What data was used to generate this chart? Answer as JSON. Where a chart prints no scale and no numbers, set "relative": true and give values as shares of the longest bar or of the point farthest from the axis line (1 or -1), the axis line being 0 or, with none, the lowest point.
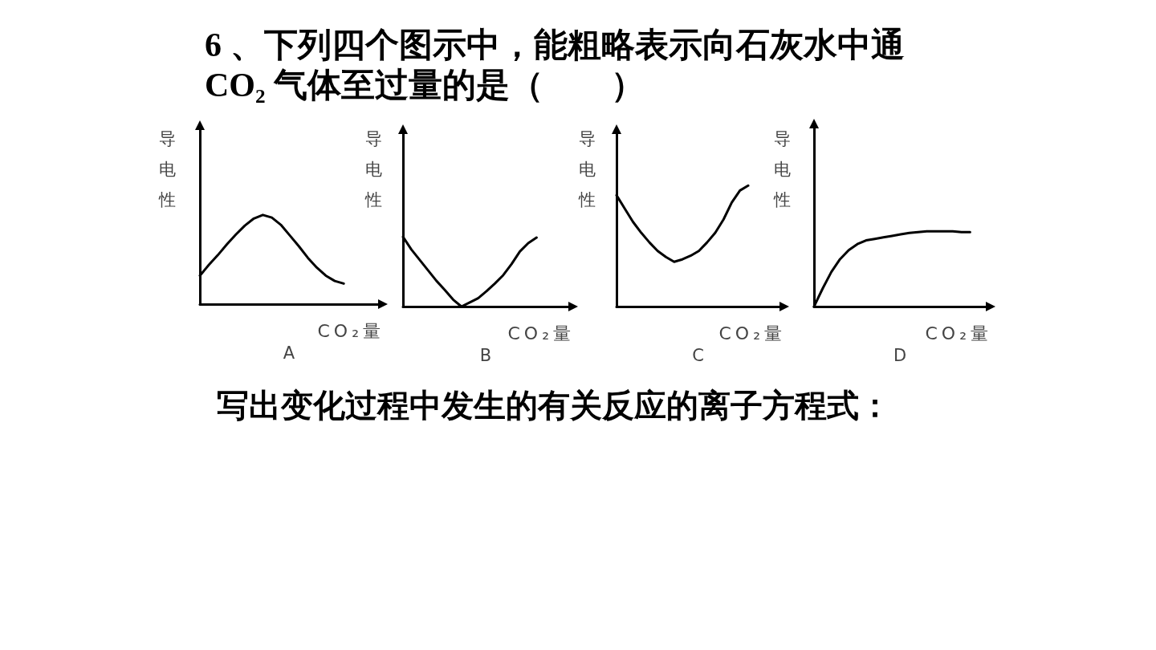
{
  "chart_data": [
    {
      "type": "other",
      "title": "6 、下列四个图示中，能粗略表示向石灰水中通CO₂ 气体至过量的是（　　）"
    },
    {
      "type": "line",
      "title": "A",
      "xlabel": "CO₂量",
      "ylabel": "导电性",
      "relative": true,
      "marker": "none",
      "color": "#000000",
      "categories": [
        null,
        null,
        null,
        null,
        null,
        null,
        null,
        null,
        null,
        null,
        null,
        null,
        null,
        null,
        null,
        null,
        null,
        null,
        null,
        null,
        null
      ],
      "values": [
        0.32,
        0.44,
        0.55,
        0.67,
        0.78,
        0.88,
        0.96,
        1,
        0.97,
        0.89,
        0.77,
        0.65,
        0.52,
        0.41,
        0.32,
        0.26,
        0.23,
        null,
        null,
        null,
        null
      ]
    },
    {
      "type": "line",
      "title": "B",
      "xlabel": "CO₂量",
      "ylabel": "导电性",
      "relative": true,
      "marker": "none",
      "color": "#000000",
      "categories": [
        null,
        null,
        null,
        null,
        null,
        null,
        null,
        null,
        null,
        null,
        null,
        null,
        null,
        null,
        null,
        null,
        null,
        null,
        null,
        null,
        null
      ],
      "values": [
        1,
        0.82,
        0.67,
        0.52,
        0.37,
        0.24,
        0.1,
        0,
        0.06,
        0.12,
        0.22,
        0.33,
        0.45,
        0.61,
        0.79,
        0.91,
        0.99,
        null,
        null,
        null,
        null
      ]
    },
    {
      "type": "line",
      "title": "C",
      "xlabel": "CO₂量",
      "ylabel": "导电性",
      "relative": true,
      "marker": "none",
      "color": "#000000",
      "categories": [
        null,
        null,
        null,
        null,
        null,
        null,
        null,
        null,
        null,
        null,
        null,
        null,
        null,
        null,
        null,
        null,
        null,
        null,
        null,
        null,
        null
      ],
      "values": [
        0.92,
        0.81,
        0.7,
        0.61,
        0.53,
        0.46,
        0.41,
        0.37,
        0.39,
        0.42,
        0.46,
        0.53,
        0.61,
        0.72,
        0.86,
        0.96,
        1,
        null,
        null,
        null,
        null
      ]
    },
    {
      "type": "line",
      "title": "D",
      "xlabel": "CO₂量",
      "ylabel": "导电性",
      "relative": true,
      "marker": "none",
      "color": "#000000",
      "categories": [
        null,
        null,
        null,
        null,
        null,
        null,
        null,
        null,
        null,
        null,
        null,
        null,
        null,
        null,
        null,
        null,
        null,
        null,
        null,
        null,
        null
      ],
      "values": [
        0,
        0.24,
        0.46,
        0.63,
        0.75,
        0.83,
        0.88,
        0.9,
        0.92,
        0.94,
        0.96,
        0.98,
        0.99,
        1,
        1,
        1,
        1,
        0.99,
        0.99,
        null,
        null
      ]
    },
    {
      "type": "other",
      "title": "写出变化过程中发生的有关反应的离子方程式："
    }
  ]
}
